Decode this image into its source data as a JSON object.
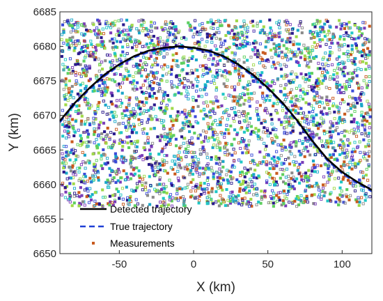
{
  "chart_data": {
    "type": "scatter",
    "xlabel": "X (km)",
    "ylabel": "Y (km)",
    "xlim": [
      -90,
      120
    ],
    "ylim": [
      6650,
      6685
    ],
    "xticks": [
      -50,
      0,
      50,
      100
    ],
    "yticks": [
      6650,
      6655,
      6660,
      6665,
      6670,
      6675,
      6680,
      6685
    ],
    "grid": false,
    "legend_position": "bottom-left",
    "colors": {
      "detected": "#000000",
      "true": "#1f3fd6",
      "measurement_palette": [
        "#2a1a8c",
        "#3b4bd8",
        "#1aa6c8",
        "#20c7c7",
        "#5fcf5f",
        "#a0d94a",
        "#7a3db8",
        "#8b8b8b",
        "#c85a1e"
      ]
    },
    "series": [
      {
        "name": "Detected trajectory",
        "style": "solid",
        "x": [
          -90,
          -80,
          -70,
          -60,
          -50,
          -40,
          -30,
          -20,
          -10,
          0,
          10,
          20,
          30,
          40,
          50,
          60,
          70,
          80,
          90,
          100,
          110,
          120
        ],
        "y": [
          6669.2,
          6671.8,
          6674.0,
          6675.9,
          6677.4,
          6678.6,
          6679.4,
          6679.8,
          6680.0,
          6679.8,
          6679.4,
          6678.6,
          6677.4,
          6675.9,
          6674.0,
          6671.8,
          6669.2,
          6666.3,
          6663.7,
          6661.8,
          6660.4,
          6659.2
        ]
      },
      {
        "name": "True trajectory",
        "style": "dashed",
        "x": [
          -90,
          -80,
          -70,
          -60,
          -50,
          -40,
          -30,
          -20,
          -10,
          0,
          10,
          20,
          30,
          40,
          50,
          60,
          70,
          80,
          90,
          100,
          110,
          120
        ],
        "y": [
          6669.0,
          6671.6,
          6673.8,
          6675.7,
          6677.2,
          6678.4,
          6679.2,
          6679.6,
          6679.8,
          6679.6,
          6679.2,
          6678.4,
          6677.2,
          6675.7,
          6673.8,
          6671.6,
          6669.0,
          6666.1,
          6663.5,
          6661.6,
          6660.2,
          6659.0
        ]
      },
      {
        "name": "Measurements",
        "style": "markers",
        "x_range": [
          -90,
          120
        ],
        "y_range": [
          6657,
          6684
        ],
        "approx_count": 3500
      }
    ]
  }
}
